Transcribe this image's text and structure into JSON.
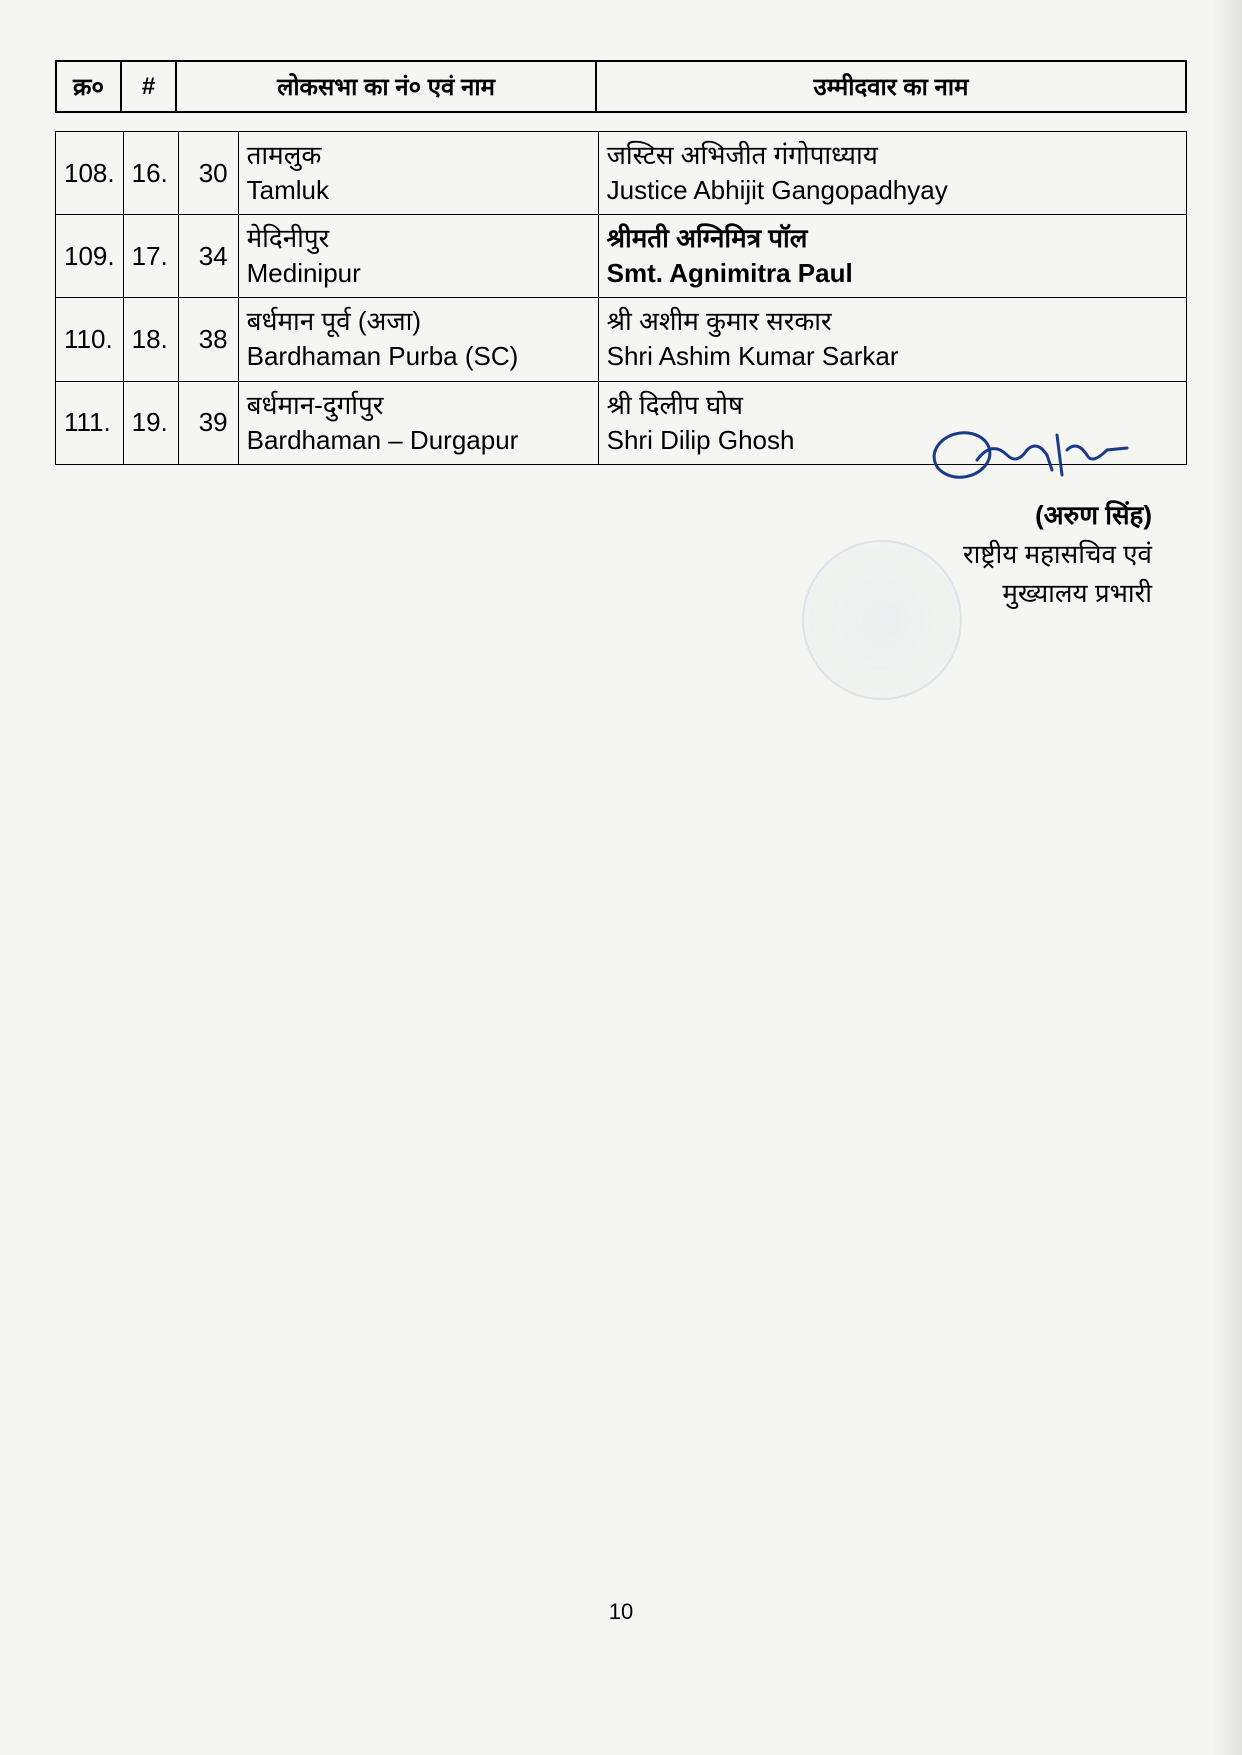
{
  "header": {
    "col1": "क्र०",
    "col2": "#",
    "col_loksabha": "लोकसभा का नं० एवं नाम",
    "col_candidate": "उम्मीदवार का नाम"
  },
  "rows": [
    {
      "sr": "108.",
      "hash": "16.",
      "num": "30",
      "const_hi": "तामलुक",
      "const_en": "Tamluk",
      "cand_hi": "जस्टिस अभिजीत गंगोपाध्याय",
      "cand_en": "Justice Abhijit Gangopadhyay",
      "cand_bold": false
    },
    {
      "sr": "109.",
      "hash": "17.",
      "num": "34",
      "const_hi": "मेदिनीपुर",
      "const_en": "Medinipur",
      "cand_hi": "श्रीमती अग्निमित्र पॉल",
      "cand_en": "Smt. Agnimitra Paul",
      "cand_bold": true
    },
    {
      "sr": "110.",
      "hash": "18.",
      "num": "38",
      "const_hi": "बर्धमान पूर्व (अजा)",
      "const_en": "Bardhaman Purba (SC)",
      "cand_hi": "श्री अशीम कुमार सरकार",
      "cand_en": "Shri Ashim Kumar Sarkar",
      "cand_bold": false
    },
    {
      "sr": "111.",
      "hash": "19.",
      "num": "39",
      "const_hi": "बर्धमान-दुर्गापुर",
      "const_en": "Bardhaman – Durgapur",
      "cand_hi": "श्री दिलीप घोष",
      "cand_en": "Shri Dilip Ghosh",
      "cand_bold": false
    }
  ],
  "signature": {
    "name": "(अरुण सिंह)",
    "title1": "राष्ट्रीय महासचिव एवं",
    "title2": "मुख्यालय प्रभारी",
    "ink_color": "#1a3a8a"
  },
  "page_number": "10",
  "colors": {
    "page_bg": "#f5f5f2",
    "border": "#000000",
    "text": "#000000"
  }
}
